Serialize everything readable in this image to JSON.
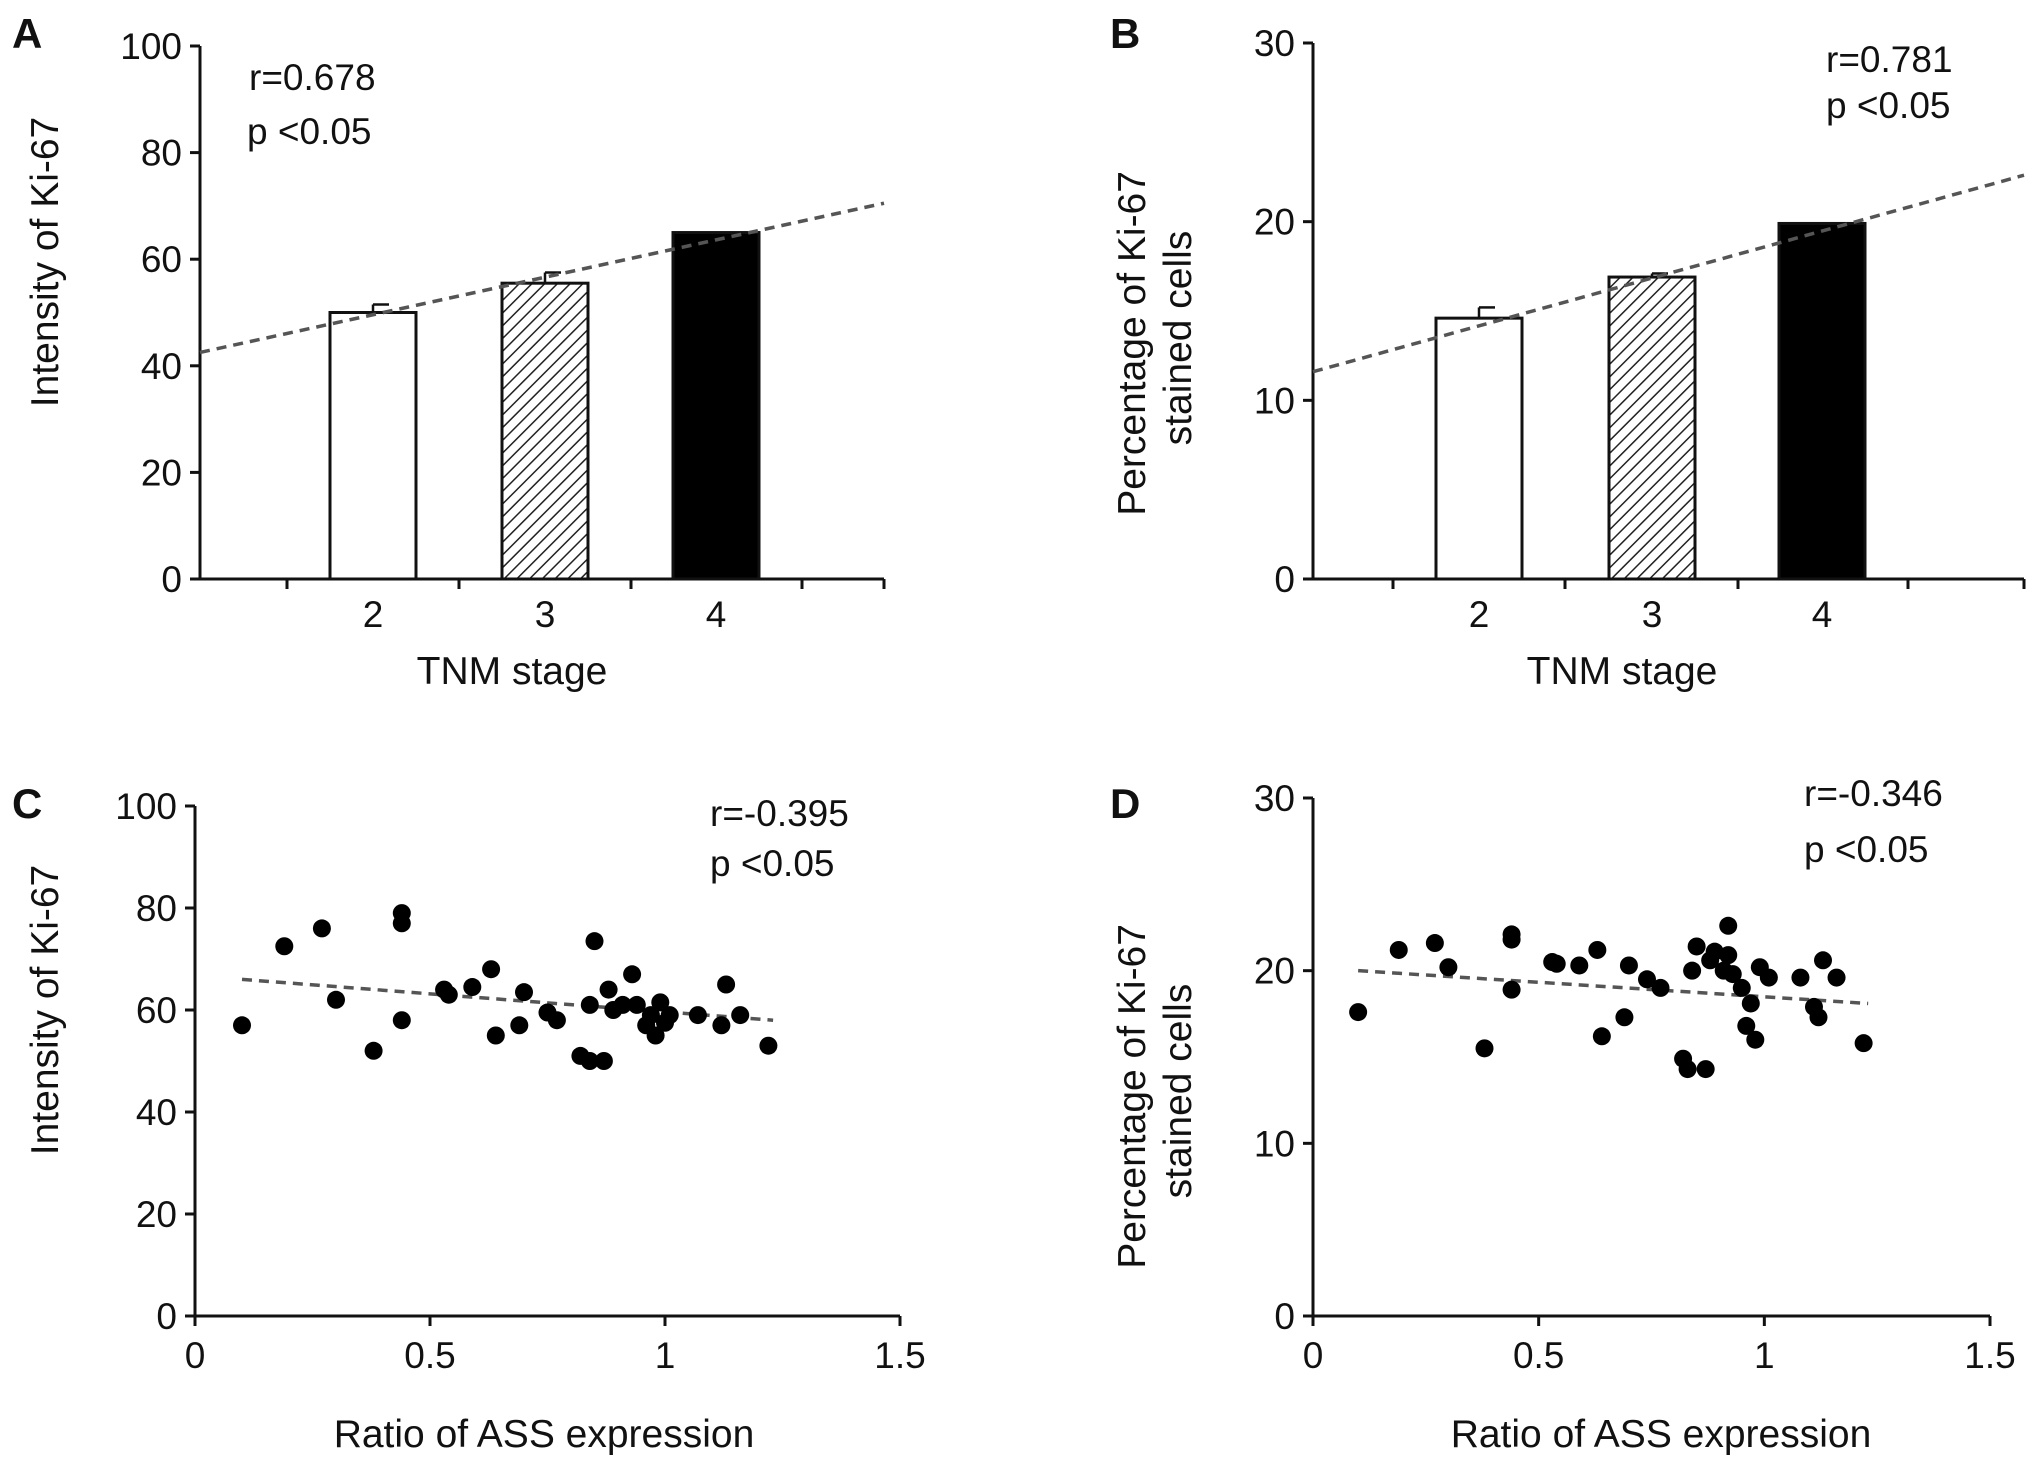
{
  "chart_data": [
    {
      "panel": "A",
      "type": "bar",
      "title": "",
      "xlabel": "TNM stage",
      "ylabel": [
        "Intensity of Ki-67"
      ],
      "categories": [
        "2",
        "3",
        "4"
      ],
      "values": [
        50,
        55.5,
        65
      ],
      "error": [
        1.5,
        2,
        0
      ],
      "bar_fills": [
        "white",
        "hatched",
        "black"
      ],
      "xlim": [
        1.3,
        5.0
      ],
      "ylim": [
        0,
        100
      ],
      "yticks": [
        "0",
        "20",
        "40",
        "60",
        "80",
        "100"
      ],
      "trendline": {
        "style": "dashed",
        "points": [
          [
            1.3,
            42.5
          ],
          [
            5.0,
            70.5
          ]
        ]
      },
      "annotations": [
        "r=0.678",
        "p <0.05"
      ],
      "annotation_position": "top-left",
      "grid": false
    },
    {
      "panel": "B",
      "type": "bar",
      "title": "",
      "xlabel": "TNM stage",
      "ylabel": [
        "Percentage of Ki-67",
        "stained cells"
      ],
      "categories": [
        "2",
        "3",
        "4"
      ],
      "values": [
        14.6,
        16.9,
        19.9
      ],
      "error": [
        0.6,
        0.2,
        0
      ],
      "bar_fills": [
        "white",
        "hatched",
        "black"
      ],
      "xlim": [
        1.3,
        5.0
      ],
      "ylim": [
        0,
        30
      ],
      "yticks": [
        "0",
        "10",
        "20",
        "30"
      ],
      "trendline": {
        "style": "dashed",
        "points": [
          [
            1.3,
            11.6
          ],
          [
            5.0,
            22.6
          ]
        ]
      },
      "annotations": [
        "r=0.781",
        "p <0.05"
      ],
      "annotation_position": "top-right",
      "grid": false
    },
    {
      "panel": "C",
      "type": "scatter",
      "title": "",
      "xlabel": "Ratio of ASS expression",
      "ylabel": [
        "Intensity of Ki-67"
      ],
      "xlim": [
        0,
        1.5
      ],
      "ylim": [
        0,
        100
      ],
      "xticks": [
        "0",
        "0.5",
        "1",
        "1.5"
      ],
      "yticks": [
        "0",
        "20",
        "40",
        "60",
        "80",
        "100"
      ],
      "points": [
        [
          0.1,
          57
        ],
        [
          0.19,
          72.5
        ],
        [
          0.27,
          76
        ],
        [
          0.3,
          62
        ],
        [
          0.38,
          52
        ],
        [
          0.44,
          77
        ],
        [
          0.44,
          79
        ],
        [
          0.44,
          58
        ],
        [
          0.53,
          64
        ],
        [
          0.54,
          63
        ],
        [
          0.59,
          64.5
        ],
        [
          0.63,
          68
        ],
        [
          0.64,
          55
        ],
        [
          0.69,
          57
        ],
        [
          0.7,
          63.5
        ],
        [
          0.75,
          59.5
        ],
        [
          0.77,
          58
        ],
        [
          0.82,
          51
        ],
        [
          0.84,
          61
        ],
        [
          0.84,
          50
        ],
        [
          0.85,
          73.5
        ],
        [
          0.87,
          50
        ],
        [
          0.88,
          64
        ],
        [
          0.89,
          60
        ],
        [
          0.91,
          61
        ],
        [
          0.93,
          67
        ],
        [
          0.94,
          61
        ],
        [
          0.96,
          57
        ],
        [
          0.97,
          59
        ],
        [
          0.98,
          55
        ],
        [
          0.99,
          61.5
        ],
        [
          1.0,
          57.5
        ],
        [
          1.01,
          59
        ],
        [
          1.07,
          59
        ],
        [
          1.12,
          57
        ],
        [
          1.13,
          65
        ],
        [
          1.16,
          59
        ],
        [
          1.22,
          53
        ]
      ],
      "trendline": {
        "style": "dashed",
        "points": [
          [
            0.1,
            66
          ],
          [
            1.23,
            58
          ]
        ]
      },
      "annotations": [
        "r=-0.395",
        "p <0.05"
      ],
      "annotation_position": "top-right",
      "grid": false
    },
    {
      "panel": "D",
      "type": "scatter",
      "title": "",
      "xlabel": "Ratio of ASS expression",
      "ylabel": [
        "Percentage of Ki-67",
        "stained cells"
      ],
      "xlim": [
        0,
        1.5
      ],
      "ylim": [
        0,
        30
      ],
      "xticks": [
        "0",
        "0.5",
        "1",
        "1.5"
      ],
      "yticks": [
        "0",
        "10",
        "20",
        "30"
      ],
      "points": [
        [
          0.1,
          17.6
        ],
        [
          0.19,
          21.2
        ],
        [
          0.27,
          21.6
        ],
        [
          0.3,
          20.2
        ],
        [
          0.38,
          15.5
        ],
        [
          0.44,
          22.1
        ],
        [
          0.44,
          21.8
        ],
        [
          0.44,
          18.9
        ],
        [
          0.53,
          20.5
        ],
        [
          0.54,
          20.4
        ],
        [
          0.59,
          20.3
        ],
        [
          0.63,
          21.2
        ],
        [
          0.64,
          16.2
        ],
        [
          0.69,
          17.3
        ],
        [
          0.7,
          20.3
        ],
        [
          0.74,
          19.5
        ],
        [
          0.77,
          19.0
        ],
        [
          0.82,
          14.9
        ],
        [
          0.83,
          14.3
        ],
        [
          0.84,
          20.0
        ],
        [
          0.85,
          21.4
        ],
        [
          0.87,
          14.3
        ],
        [
          0.88,
          20.6
        ],
        [
          0.89,
          21.1
        ],
        [
          0.91,
          20.0
        ],
        [
          0.92,
          22.6
        ],
        [
          0.92,
          20.9
        ],
        [
          0.93,
          19.8
        ],
        [
          0.95,
          19.0
        ],
        [
          0.96,
          16.8
        ],
        [
          0.97,
          18.1
        ],
        [
          0.98,
          16.0
        ],
        [
          0.99,
          20.2
        ],
        [
          1.01,
          19.6
        ],
        [
          1.08,
          19.6
        ],
        [
          1.11,
          17.9
        ],
        [
          1.12,
          17.3
        ],
        [
          1.13,
          20.6
        ],
        [
          1.16,
          19.6
        ],
        [
          1.22,
          15.8
        ]
      ],
      "trendline": {
        "style": "dashed",
        "points": [
          [
            0.1,
            20.0
          ],
          [
            1.23,
            18.1
          ]
        ]
      },
      "annotations": [
        "r=-0.346",
        "p <0.05"
      ],
      "annotation_position": "top-right",
      "grid": false
    }
  ]
}
